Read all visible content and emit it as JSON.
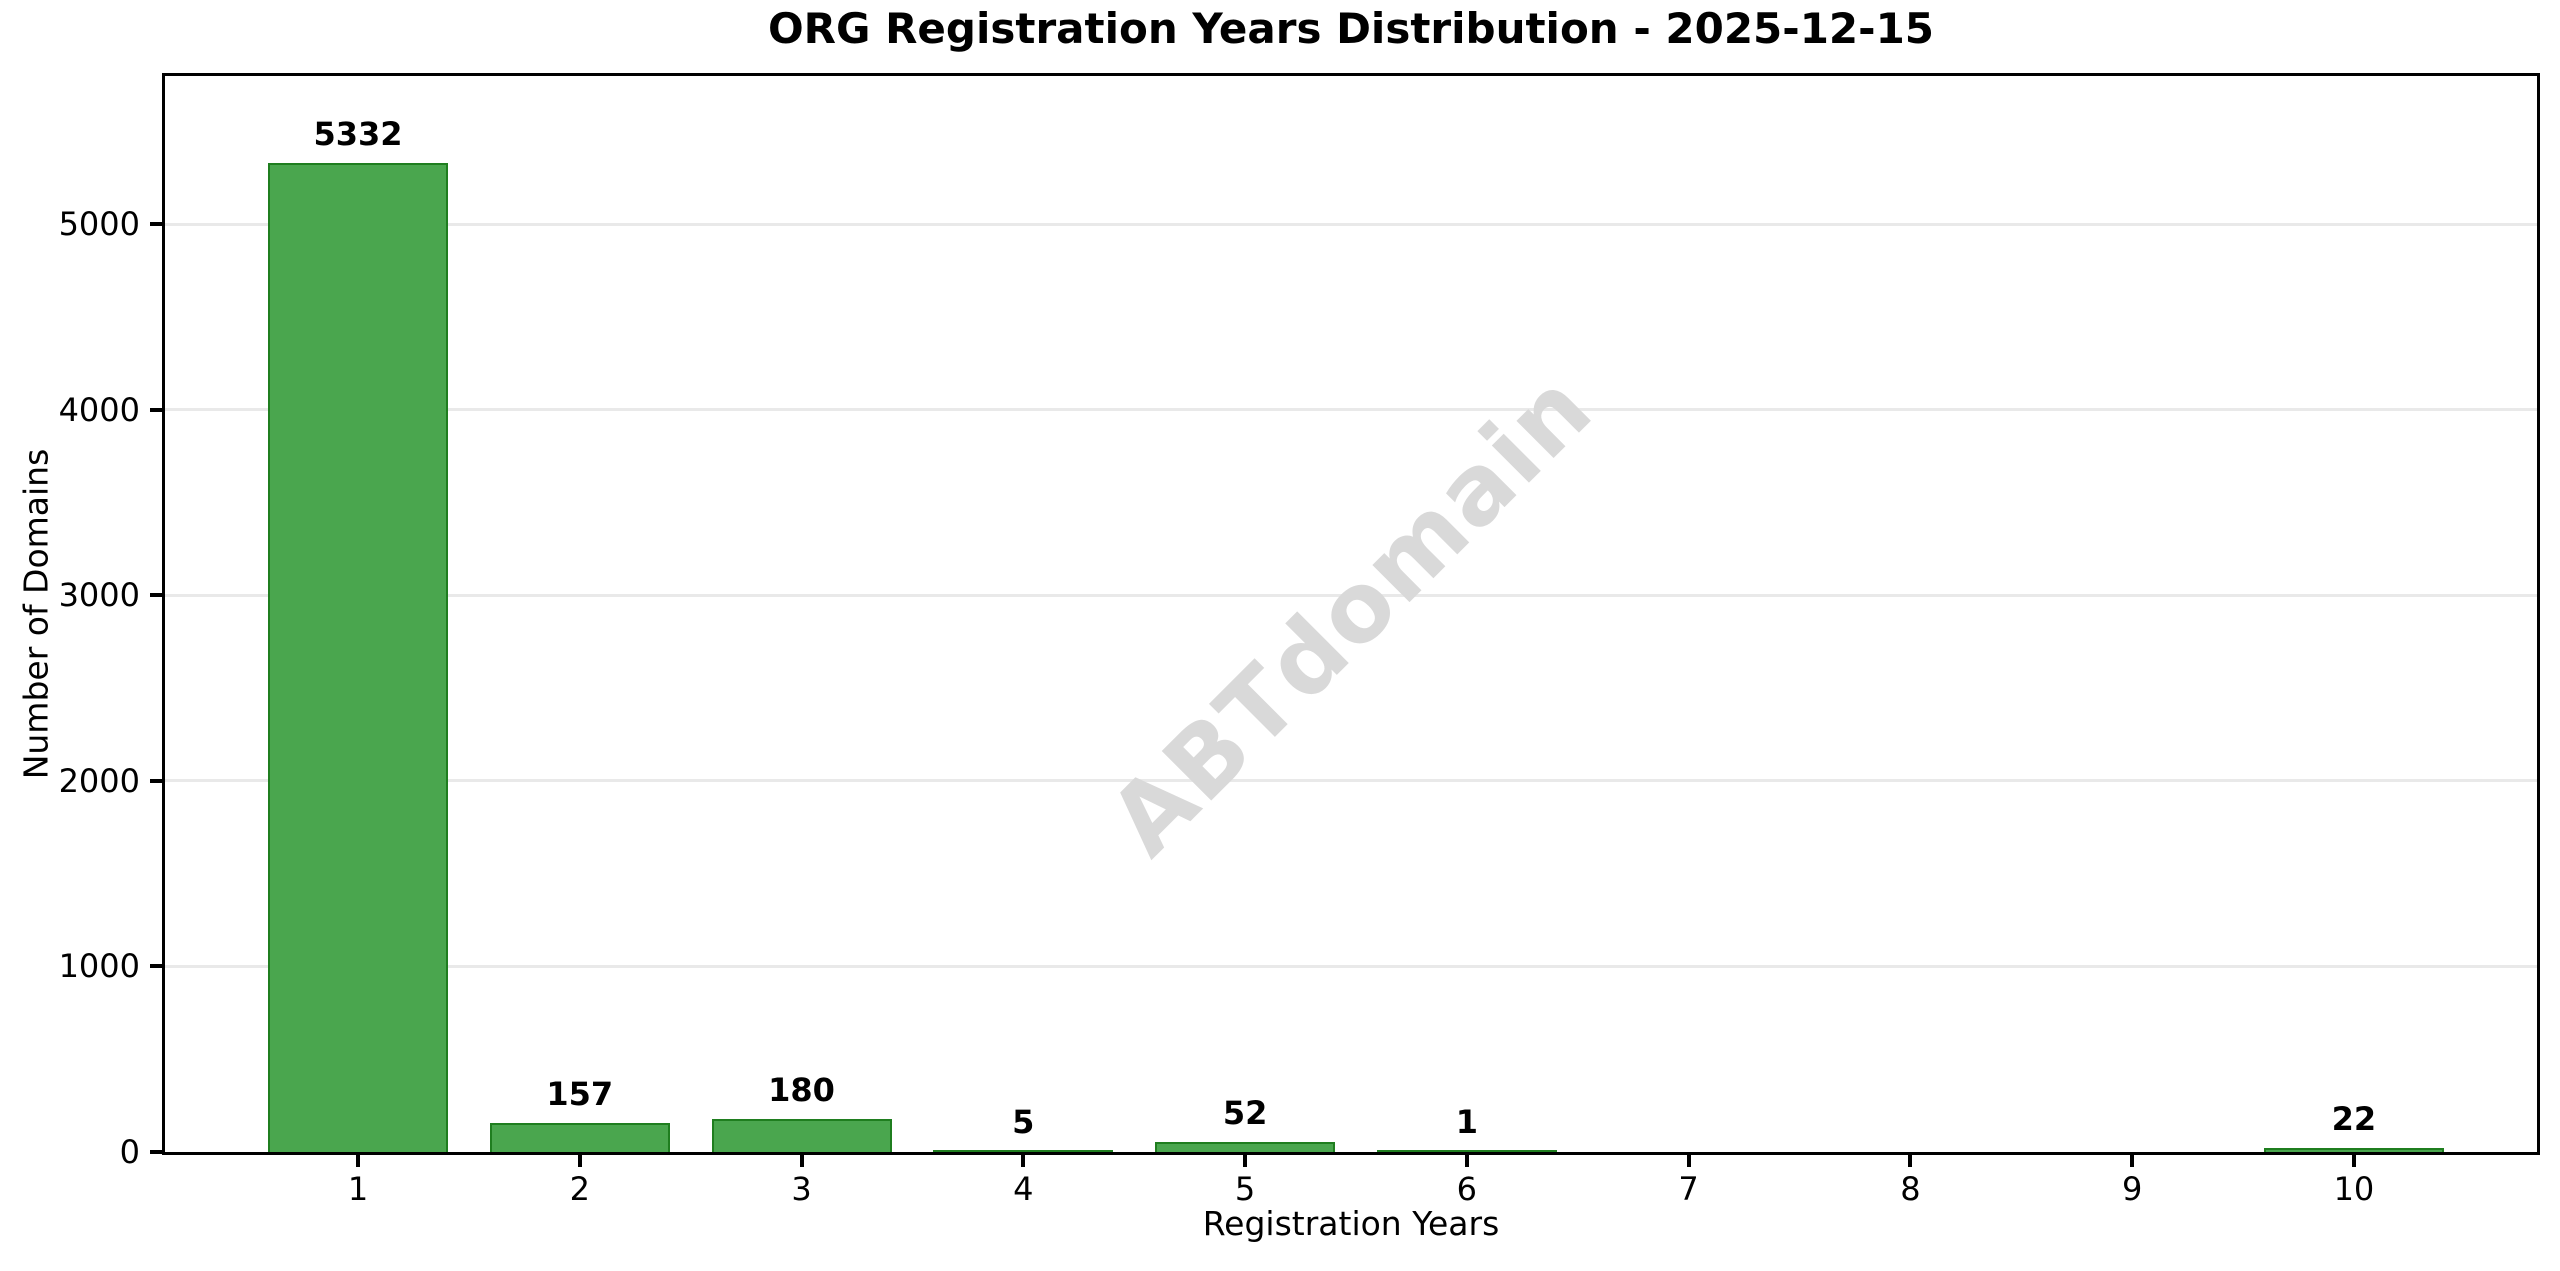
{
  "chart_data": {
    "type": "bar",
    "title": "ORG Registration Years Distribution - 2025-12-15",
    "xlabel": "Registration Years",
    "ylabel": "Number of Domains",
    "watermark": "ABTdomain",
    "categories": [
      "1",
      "2",
      "3",
      "4",
      "5",
      "6",
      "7",
      "8",
      "9",
      "10"
    ],
    "values": [
      5332,
      157,
      180,
      5,
      52,
      1,
      0,
      0,
      0,
      22
    ],
    "bar_labels": [
      "5332",
      "157",
      "180",
      "5",
      "52",
      "1",
      "",
      "",
      "",
      "22"
    ],
    "yticks": [
      0,
      1000,
      2000,
      3000,
      4000,
      5000
    ],
    "ytick_labels": [
      "0",
      "1000",
      "2000",
      "3000",
      "4000",
      "5000"
    ],
    "ylim": [
      0,
      5800
    ],
    "grid": true,
    "legend": "none",
    "bar_color": "#4aa64e",
    "bar_edge_color": "#1f7e1f",
    "gridline_color": "#e9e9e9",
    "watermark_color": "#d9d9d9"
  }
}
